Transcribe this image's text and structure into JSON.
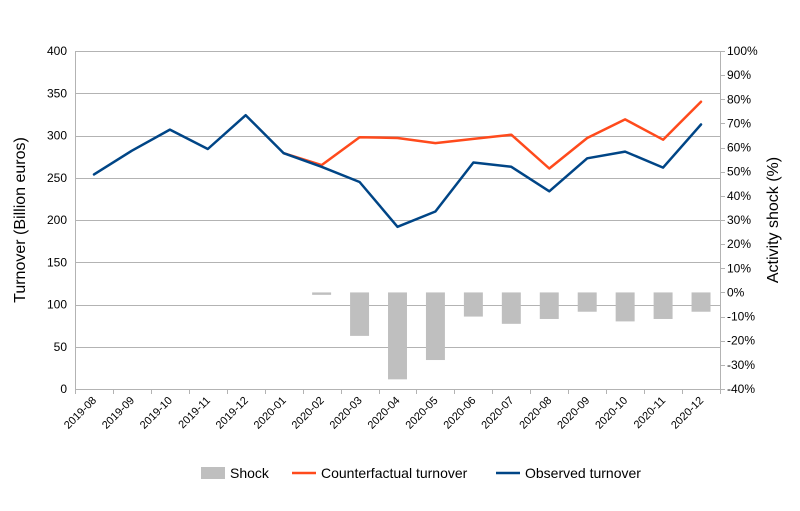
{
  "chart_data": {
    "type": "line",
    "title": "",
    "categories": [
      "2019-08",
      "2019-09",
      "2019-10",
      "2019-11",
      "2019-12",
      "2020-01",
      "2020-02",
      "2020-03",
      "2020-04",
      "2020-05",
      "2020-06",
      "2020-07",
      "2020-08",
      "2020-09",
      "2020-10",
      "2020-11",
      "2020-12"
    ],
    "y_left": {
      "label": "Turnover (Billion euros)",
      "min": 0,
      "max": 400,
      "step": 50,
      "tick_labels": [
        "0",
        "50",
        "100",
        "150",
        "200",
        "250",
        "300",
        "350",
        "400"
      ]
    },
    "y_right": {
      "label": "Activity shock (%)",
      "min": -40,
      "max": 100,
      "step": 10,
      "tick_labels": [
        "-40%",
        "-30%",
        "-20%",
        "-10%",
        "0%",
        "10%",
        "20%",
        "30%",
        "40%",
        "50%",
        "60%",
        "70%",
        "80%",
        "90%",
        "100%"
      ]
    },
    "grid": "horizontal",
    "legend_position": "bottom",
    "series": [
      {
        "name": "Shock",
        "type": "bar",
        "axis": "right",
        "color": "#bfbfbf",
        "values": [
          null,
          null,
          null,
          null,
          null,
          null,
          -1,
          -18,
          -36,
          -28,
          -10,
          -13,
          -11,
          -8,
          -12,
          -11,
          -8
        ]
      },
      {
        "name": "Counterfactual turnover",
        "type": "line",
        "axis": "left",
        "color": "#ff4a1c",
        "values": [
          null,
          null,
          null,
          null,
          null,
          279,
          265,
          298,
          297,
          291,
          296,
          301,
          261,
          297,
          319,
          295,
          340
        ]
      },
      {
        "name": "Observed turnover",
        "type": "line",
        "axis": "left",
        "color": "#004586",
        "values": [
          254,
          282,
          307,
          284,
          324,
          279,
          263,
          245,
          192,
          210,
          268,
          263,
          234,
          273,
          281,
          262,
          313
        ]
      }
    ]
  }
}
